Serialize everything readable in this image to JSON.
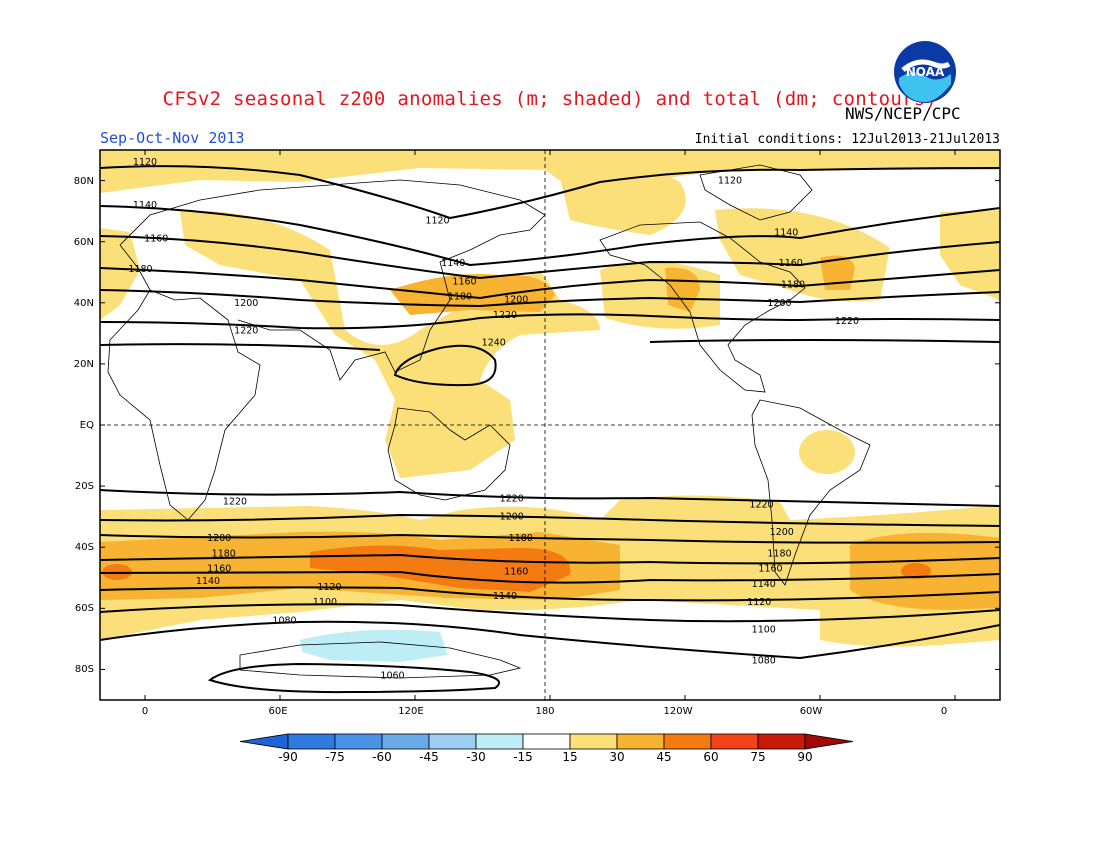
{
  "header": {
    "title": "CFSv2 seasonal z200 anomalies (m; shaded) and total (dm; contours)",
    "agency": "NWS/NCEP/CPC",
    "period": "Sep-Oct-Nov 2013",
    "initial_conditions": "Initial conditions: 12Jul2013-21Jul2013",
    "logo_text": "NOAA"
  },
  "map": {
    "lat_labels": [
      "80N",
      "60N",
      "40N",
      "20N",
      "EQ",
      "20S",
      "40S",
      "60S",
      "80S"
    ],
    "lon_labels": [
      "0",
      "60E",
      "120E",
      "180",
      "120W",
      "60W",
      "0"
    ],
    "contour_labels": [
      {
        "text": "1120",
        "lon": 0,
        "lat": 86
      },
      {
        "text": "1120",
        "lon": 130,
        "lat": 67
      },
      {
        "text": "1120",
        "lon": -100,
        "lat": 80
      },
      {
        "text": "1140",
        "lon": 0,
        "lat": 72
      },
      {
        "text": "1140",
        "lon": 137,
        "lat": 53
      },
      {
        "text": "1140",
        "lon": -75,
        "lat": 63
      },
      {
        "text": "1160",
        "lon": 5,
        "lat": 61
      },
      {
        "text": "1160",
        "lon": 142,
        "lat": 47
      },
      {
        "text": "1160",
        "lon": -73,
        "lat": 53
      },
      {
        "text": "1180",
        "lon": -2,
        "lat": 51
      },
      {
        "text": "1180",
        "lon": 140,
        "lat": 42
      },
      {
        "text": "1180",
        "lon": -72,
        "lat": 46
      },
      {
        "text": "1200",
        "lon": 45,
        "lat": 40
      },
      {
        "text": "1200",
        "lon": 165,
        "lat": 41
      },
      {
        "text": "1200",
        "lon": -78,
        "lat": 40
      },
      {
        "text": "1220",
        "lon": 45,
        "lat": 31
      },
      {
        "text": "1220",
        "lon": 160,
        "lat": 36
      },
      {
        "text": "1220",
        "lon": -48,
        "lat": 34
      },
      {
        "text": "1240",
        "lon": 155,
        "lat": 27
      },
      {
        "text": "1220",
        "lon": 40,
        "lat": -25
      },
      {
        "text": "1220",
        "lon": 163,
        "lat": -24
      },
      {
        "text": "1220",
        "lon": -86,
        "lat": -26
      },
      {
        "text": "1200",
        "lon": 33,
        "lat": -37
      },
      {
        "text": "1200",
        "lon": 163,
        "lat": -30
      },
      {
        "text": "1200",
        "lon": -77,
        "lat": -35
      },
      {
        "text": "1180",
        "lon": 35,
        "lat": -42
      },
      {
        "text": "1180",
        "lon": 167,
        "lat": -37
      },
      {
        "text": "1180",
        "lon": -78,
        "lat": -42
      },
      {
        "text": "1160",
        "lon": 33,
        "lat": -47
      },
      {
        "text": "1160",
        "lon": 165,
        "lat": -48
      },
      {
        "text": "1160",
        "lon": -82,
        "lat": -47
      },
      {
        "text": "1140",
        "lon": 28,
        "lat": -51
      },
      {
        "text": "1140",
        "lon": 160,
        "lat": -56
      },
      {
        "text": "1140",
        "lon": -85,
        "lat": -52
      },
      {
        "text": "1120",
        "lon": 82,
        "lat": -53
      },
      {
        "text": "1120",
        "lon": -87,
        "lat": -58
      },
      {
        "text": "1100",
        "lon": 80,
        "lat": -58
      },
      {
        "text": "1100",
        "lon": -85,
        "lat": -67
      },
      {
        "text": "1080",
        "lon": 62,
        "lat": -64
      },
      {
        "text": "1080",
        "lon": -85,
        "lat": -77
      },
      {
        "text": "1060",
        "lon": 110,
        "lat": -82
      }
    ]
  },
  "colorbar": {
    "labels": [
      "-90",
      "-75",
      "-60",
      "-45",
      "-30",
      "-15",
      "15",
      "30",
      "45",
      "60",
      "75",
      "90"
    ],
    "colors": [
      "#1f63d9",
      "#2e7ae0",
      "#4a92e6",
      "#6aaae6",
      "#9dcdf0",
      "#bdeef5",
      "#ffffff",
      "#fbe07a",
      "#f8b332",
      "#f47a12",
      "#f2421a",
      "#c81808",
      "#9e0a08"
    ]
  }
}
